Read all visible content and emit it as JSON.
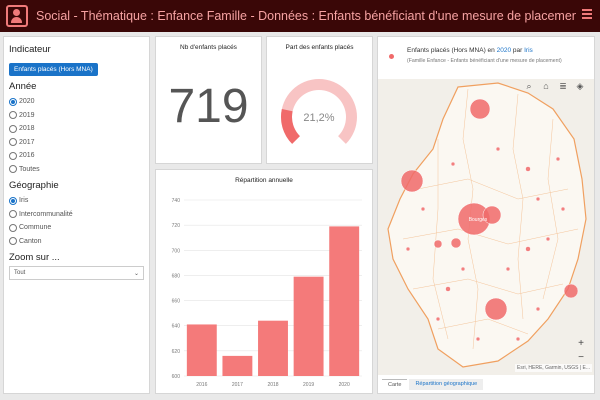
{
  "header": {
    "title": "Social - Thématique : Enfance Famille - Données : Enfants bénéficiant d'une mesure de placement..."
  },
  "selectors": {
    "indicateur": {
      "title": "Indicateur",
      "chip": "Enfants placés (Hors MNA)"
    },
    "annee": {
      "title": "Année",
      "options": [
        "2020",
        "2019",
        "2018",
        "2017",
        "2016",
        "Toutes"
      ],
      "selected": 0
    },
    "geographie": {
      "title": "Géographie",
      "options": [
        "Iris",
        "Intercommunalité",
        "Commune",
        "Canton"
      ],
      "selected": 0
    },
    "zoom": {
      "title": "Zoom sur ...",
      "value": "Tout"
    }
  },
  "count_tile": {
    "title": "Nb d'enfants placés",
    "value": "719"
  },
  "pct_tile": {
    "title": "Part des enfants placés",
    "value": "21,2%",
    "fraction": 0.212
  },
  "chart_data": {
    "type": "bar",
    "title": "Répartition annuelle",
    "categories": [
      "2016",
      "2017",
      "2018",
      "2019",
      "2020"
    ],
    "values": [
      641,
      616,
      644,
      679,
      719
    ],
    "ylim": [
      600,
      740
    ],
    "yticks": [
      600,
      620,
      640,
      660,
      680,
      700,
      720,
      740
    ],
    "xlabel": "",
    "ylabel": "",
    "color": "#f47a7a"
  },
  "map": {
    "legend_title_pre": "Enfants placés (Hors MNA) en",
    "legend_year": "2020",
    "legend_by": "par",
    "legend_geo": "Iris",
    "legend_sub": "(Famille Enfance - Enfants bénéficiant d'une mesure de placement)",
    "city_label": "Bourges",
    "attribution": "Esri, HERE, Garmin, USGS | E...",
    "tabs": [
      "Carte",
      "Répartition géographique"
    ],
    "zoom_in": "+",
    "zoom_out": "−"
  },
  "colors": {
    "accent": "#1a73c8",
    "header_bg": "#3a0707",
    "bar": "#f47a7a"
  }
}
